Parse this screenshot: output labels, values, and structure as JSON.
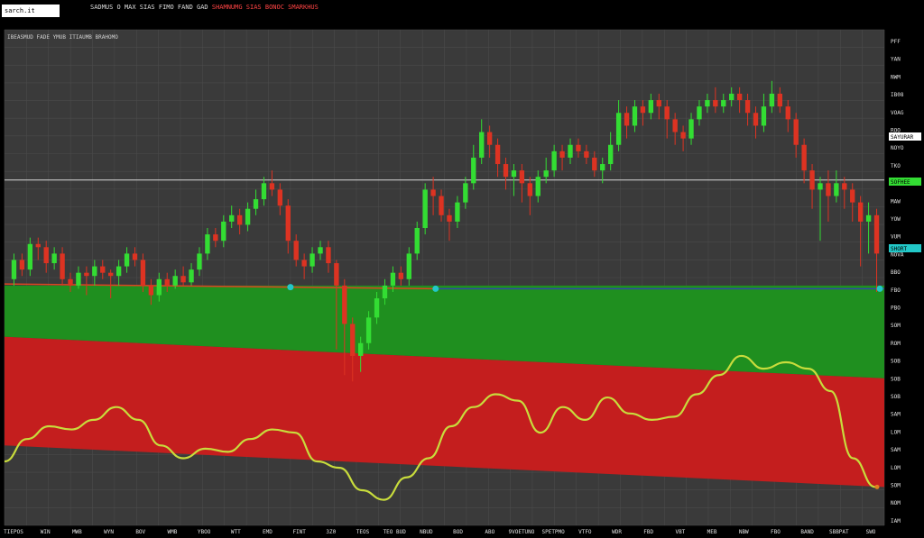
{
  "header": {
    "badge": "sarch.it",
    "info_white": "SADMUS  O MAX   SIAS  FIMO  FAND  GAD  ",
    "info_red": "SHAMNUMG  SIAS  BONOC  SMARKHUS"
  },
  "chart_legend": "IBEASMUD   FADE  YMUB  ITIAUMB BRAHOMO",
  "colors": {
    "background": "#000000",
    "plot_bg": "#3a3a3a",
    "grid": "#4b4b4b",
    "up": "#33dd33",
    "down": "#dd3322",
    "green_zone": "#1f8f1f",
    "red_zone": "#c41e1e",
    "oscillator": "#c8dc3c",
    "support_line": "#3344aa",
    "marker": "#22c8c8"
  },
  "chart_data": {
    "type": "candlestick",
    "title": "",
    "x_ticks": [
      "TIEPOS",
      "WIN",
      "MWB",
      "WYN",
      "BOV",
      "WMB",
      "YBOO",
      "WTT",
      "EMD",
      "FINT",
      "3Z0",
      "TEOS",
      "TEO BUD",
      "NBUD",
      "BOD",
      "ABO",
      "9VOETUNO",
      "SPETPMO",
      "VTFO",
      "WDR",
      "FBD",
      "VBT",
      "MEB",
      "NBW",
      "FBO",
      "BAND",
      "SBBPAT",
      "SWO"
    ],
    "y_ticks": [
      "PFF",
      "YAN",
      "NWM",
      "IB08",
      "VOAG",
      "ROO",
      "NOYO",
      "TKO",
      "PHOS",
      "MAW",
      "YOW",
      "VUM",
      "NOVA",
      "BBO",
      "FBO",
      "PBO",
      "SOM",
      "ROM",
      "SOB",
      "SOB",
      "SOB",
      "SAM",
      "LOM",
      "SAM",
      "LOM",
      "SOM",
      "NOM",
      "IAM"
    ],
    "price_labels": {
      "upper": "SAYURAR",
      "green": "SOFHEE",
      "cyan": "SHORT"
    },
    "y_range": [
      0,
      100
    ],
    "candles": [
      [
        32,
        38,
        30,
        40
      ],
      [
        38,
        35,
        33,
        40
      ],
      [
        35,
        43,
        33,
        45
      ],
      [
        43,
        42,
        38,
        45
      ],
      [
        42,
        37,
        34,
        44
      ],
      [
        37,
        40,
        35,
        42
      ],
      [
        40,
        32,
        30,
        42
      ],
      [
        32,
        30,
        28,
        34
      ],
      [
        30,
        34,
        29,
        36
      ],
      [
        34,
        33,
        27,
        36
      ],
      [
        33,
        36,
        30,
        38
      ],
      [
        36,
        34,
        32,
        38
      ],
      [
        34,
        33,
        26,
        35
      ],
      [
        33,
        36,
        30,
        38
      ],
      [
        36,
        40,
        34,
        42
      ],
      [
        40,
        38,
        36,
        42
      ],
      [
        38,
        30,
        28,
        40
      ],
      [
        30,
        27,
        24,
        32
      ],
      [
        27,
        32,
        25,
        34
      ],
      [
        32,
        30,
        28,
        34
      ],
      [
        30,
        33,
        29,
        35
      ],
      [
        33,
        31,
        30,
        36
      ],
      [
        31,
        35,
        30,
        37
      ],
      [
        35,
        40,
        33,
        42
      ],
      [
        40,
        46,
        38,
        48
      ],
      [
        46,
        44,
        42,
        48
      ],
      [
        44,
        50,
        42,
        52
      ],
      [
        50,
        52,
        48,
        55
      ],
      [
        52,
        49,
        46,
        54
      ],
      [
        49,
        54,
        47,
        56
      ],
      [
        54,
        57,
        52,
        60
      ],
      [
        57,
        62,
        55,
        64
      ],
      [
        62,
        60,
        58,
        66
      ],
      [
        60,
        55,
        52,
        62
      ],
      [
        55,
        44,
        40,
        57
      ],
      [
        44,
        38,
        36,
        46
      ],
      [
        38,
        36,
        32,
        40
      ],
      [
        36,
        40,
        34,
        42
      ],
      [
        40,
        42,
        38,
        44
      ],
      [
        42,
        37,
        34,
        44
      ],
      [
        37,
        30,
        10,
        38
      ],
      [
        30,
        18,
        2,
        32
      ],
      [
        18,
        8,
        0,
        20
      ],
      [
        8,
        12,
        3,
        14
      ],
      [
        12,
        20,
        10,
        22
      ],
      [
        20,
        26,
        18,
        28
      ],
      [
        26,
        30,
        24,
        32
      ],
      [
        30,
        34,
        28,
        36
      ],
      [
        34,
        32,
        30,
        36
      ],
      [
        32,
        40,
        30,
        42
      ],
      [
        40,
        48,
        38,
        50
      ],
      [
        48,
        60,
        46,
        62
      ],
      [
        60,
        58,
        52,
        64
      ],
      [
        58,
        52,
        50,
        60
      ],
      [
        52,
        50,
        44,
        54
      ],
      [
        50,
        56,
        48,
        58
      ],
      [
        56,
        62,
        54,
        64
      ],
      [
        62,
        70,
        60,
        74
      ],
      [
        70,
        78,
        68,
        82
      ],
      [
        78,
        74,
        70,
        80
      ],
      [
        74,
        68,
        64,
        76
      ],
      [
        68,
        64,
        60,
        70
      ],
      [
        64,
        66,
        58,
        68
      ],
      [
        66,
        62,
        56,
        68
      ],
      [
        62,
        58,
        52,
        64
      ],
      [
        58,
        64,
        56,
        66
      ],
      [
        64,
        66,
        62,
        70
      ],
      [
        66,
        72,
        64,
        74
      ],
      [
        72,
        70,
        66,
        74
      ],
      [
        70,
        74,
        68,
        76
      ],
      [
        74,
        72,
        70,
        76
      ],
      [
        72,
        70,
        68,
        74
      ],
      [
        70,
        66,
        64,
        72
      ],
      [
        66,
        68,
        62,
        70
      ],
      [
        68,
        74,
        66,
        78
      ],
      [
        74,
        84,
        72,
        88
      ],
      [
        84,
        80,
        76,
        86
      ],
      [
        80,
        86,
        78,
        88
      ],
      [
        86,
        84,
        80,
        88
      ],
      [
        84,
        88,
        82,
        90
      ],
      [
        88,
        86,
        82,
        90
      ],
      [
        86,
        82,
        76,
        88
      ],
      [
        82,
        78,
        74,
        84
      ],
      [
        78,
        76,
        72,
        80
      ],
      [
        76,
        82,
        74,
        84
      ],
      [
        82,
        86,
        80,
        88
      ],
      [
        86,
        88,
        84,
        90
      ],
      [
        88,
        86,
        84,
        92
      ],
      [
        86,
        88,
        84,
        90
      ],
      [
        88,
        90,
        86,
        92
      ],
      [
        90,
        88,
        84,
        92
      ],
      [
        88,
        84,
        80,
        90
      ],
      [
        84,
        80,
        76,
        86
      ],
      [
        80,
        86,
        78,
        90
      ],
      [
        86,
        90,
        84,
        94
      ],
      [
        90,
        86,
        84,
        92
      ],
      [
        86,
        82,
        78,
        88
      ],
      [
        82,
        74,
        70,
        84
      ],
      [
        74,
        66,
        62,
        76
      ],
      [
        66,
        60,
        54,
        68
      ],
      [
        60,
        62,
        44,
        64
      ],
      [
        62,
        58,
        50,
        66
      ],
      [
        58,
        62,
        56,
        66
      ],
      [
        62,
        60,
        54,
        64
      ],
      [
        60,
        56,
        50,
        62
      ],
      [
        56,
        50,
        36,
        58
      ],
      [
        50,
        52,
        40,
        56
      ],
      [
        52,
        40,
        28,
        54
      ]
    ],
    "green_zone": {
      "top": [
        30,
        30
      ],
      "bottom": [
        14,
        1
      ]
    },
    "red_zone": {
      "top": [
        14,
        1
      ],
      "bottom": [
        -20,
        -33
      ]
    },
    "lines": {
      "upper_horizontal": 63,
      "support_left": [
        30.5,
        29
      ],
      "support_right": [
        29,
        29
      ]
    },
    "oscillator": [
      -25,
      -18,
      -14,
      -15,
      -12,
      -8,
      -12,
      -20,
      -24,
      -21,
      -22,
      -18,
      -15,
      -16,
      -25,
      -27,
      -34,
      -37,
      -30,
      -24,
      -14,
      -8,
      -4,
      -6,
      -16,
      -8,
      -12,
      -5,
      -10,
      -12,
      -11,
      -4,
      2,
      8,
      4,
      6,
      4,
      -3,
      -24,
      -33
    ]
  }
}
